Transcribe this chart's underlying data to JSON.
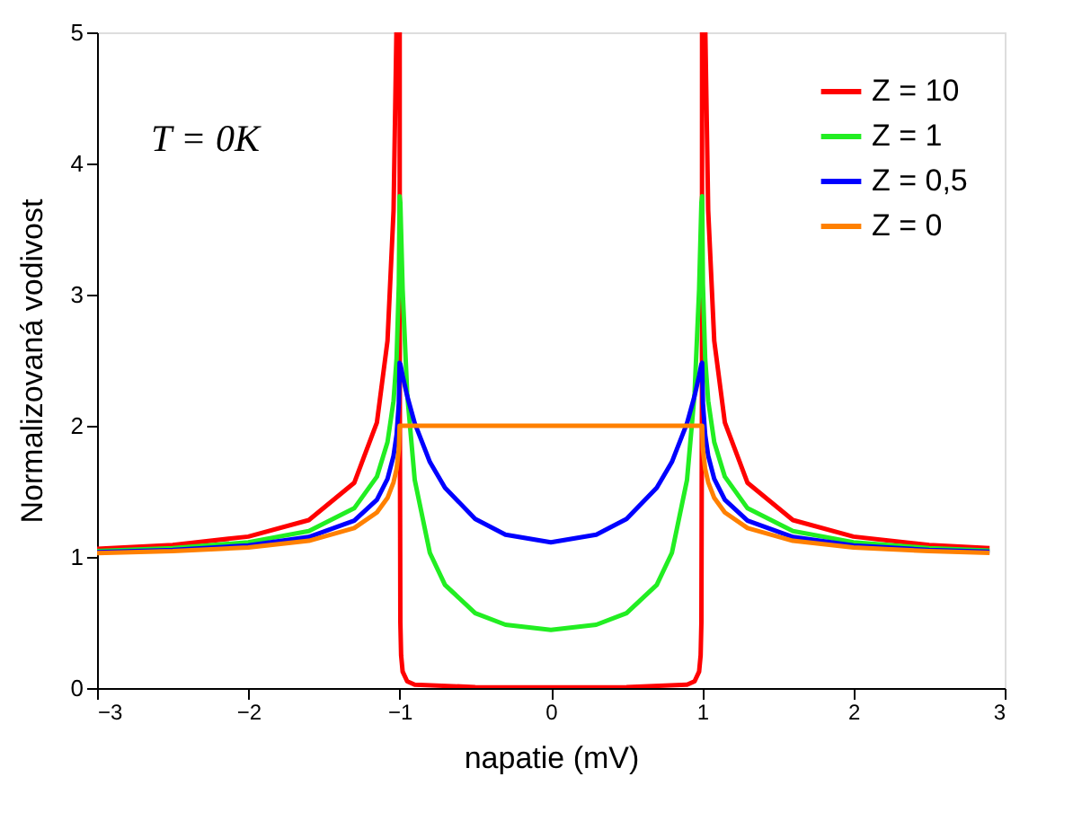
{
  "chart_data": {
    "type": "line",
    "xlabel": "napatie (mV)",
    "ylabel": "Normalizovaná vodivost",
    "annotations": [
      "T = 0K"
    ],
    "xlim": [
      -3,
      3
    ],
    "ylim": [
      0,
      5
    ],
    "xticks": [
      -3,
      -2,
      -1,
      0,
      1,
      2,
      3
    ],
    "yticks": [
      0,
      1,
      2,
      3,
      4,
      5
    ],
    "grid": false,
    "legend": "top right",
    "line_style": "solid",
    "marker": "none",
    "series": [
      {
        "name": "Z = 10",
        "color": "#ff0000",
        "x": [
          -3,
          -2.5,
          -2,
          -1.6,
          -1.3,
          -1.15,
          -1.08,
          -1.04,
          -1.021,
          -1,
          -0.9995,
          -0.999,
          -0.995,
          -0.99,
          -0.98,
          -0.95,
          -0.9,
          -0.5,
          0,
          0.5,
          0.9,
          0.95,
          0.98,
          0.99,
          0.995,
          0.999,
          0.9995,
          1,
          1.021,
          1.04,
          1.08,
          1.15,
          1.3,
          1.6,
          2,
          2.5,
          2.9
        ],
        "values": [
          1.061,
          1.091,
          1.155,
          1.281,
          1.565,
          2.025,
          2.647,
          3.64,
          5,
          5,
          5,
          2.47,
          0.5,
          0.25,
          0.126,
          0.051,
          0.026,
          0.007,
          0.005,
          0.007,
          0.026,
          0.051,
          0.126,
          0.25,
          0.5,
          2.47,
          5,
          5,
          5,
          3.64,
          2.647,
          2.025,
          1.565,
          1.281,
          1.155,
          1.091,
          1.066
        ]
      },
      {
        "name": "Z = 1",
        "color": "#22ee22",
        "x": [
          -3,
          -2.5,
          -2,
          -1.6,
          -1.3,
          -1.15,
          -1.08,
          -1.04,
          -1.02,
          -1.005,
          -1,
          -0.995,
          -0.98,
          -0.95,
          -0.9,
          -0.8,
          -0.7,
          -0.5,
          -0.3,
          0,
          0.3,
          0.5,
          0.7,
          0.8,
          0.9,
          0.95,
          0.98,
          0.995,
          1,
          1.005,
          1.02,
          1.04,
          1.08,
          1.15,
          1.3,
          1.6,
          2,
          2.5,
          2.9
        ],
        "values": [
          1.045,
          1.067,
          1.112,
          1.197,
          1.371,
          1.612,
          1.875,
          2.19,
          2.51,
          3.08,
          3.75,
          3.7,
          3.04,
          2.247,
          1.587,
          1.031,
          0.787,
          0.571,
          0.483,
          0.444,
          0.483,
          0.571,
          0.787,
          1.031,
          1.587,
          2.247,
          3.04,
          3.7,
          3.75,
          3.08,
          2.51,
          2.19,
          1.875,
          1.612,
          1.371,
          1.197,
          1.112,
          1.067,
          1.048
        ]
      },
      {
        "name": "Z = 0,5",
        "color": "#0000ff",
        "x": [
          -3,
          -2.5,
          -2,
          -1.6,
          -1.3,
          -1.15,
          -1.08,
          -1.04,
          -1.02,
          -1.005,
          -1,
          -0.995,
          -0.98,
          -0.95,
          -0.9,
          -0.8,
          -0.7,
          -0.5,
          -0.3,
          0,
          0.3,
          0.5,
          0.7,
          0.8,
          0.9,
          0.95,
          0.98,
          0.995,
          1,
          1.005,
          1.02,
          1.04,
          1.08,
          1.15,
          1.3,
          1.6,
          2,
          2.5,
          2.9
        ],
        "values": [
          1.036,
          1.053,
          1.087,
          1.152,
          1.277,
          1.436,
          1.595,
          1.771,
          1.93,
          2.174,
          2.48,
          2.47,
          2.382,
          2.228,
          2.02,
          1.724,
          1.527,
          1.29,
          1.17,
          1.111,
          1.17,
          1.29,
          1.527,
          1.724,
          2.02,
          2.228,
          2.382,
          2.47,
          2.48,
          2.174,
          1.93,
          1.771,
          1.595,
          1.436,
          1.277,
          1.152,
          1.087,
          1.053,
          1.039
        ]
      },
      {
        "name": "Z = 0",
        "color": "#ff8000",
        "x": [
          -3,
          -2.5,
          -2,
          -1.6,
          -1.3,
          -1.15,
          -1.08,
          -1.04,
          -1.02,
          -1.005,
          -1,
          0,
          1,
          1.005,
          1.02,
          1.04,
          1.08,
          1.15,
          1.3,
          1.6,
          2,
          2.5,
          2.9
        ],
        "values": [
          1.029,
          1.044,
          1.072,
          1.123,
          1.22,
          1.339,
          1.45,
          1.57,
          1.67,
          1.82,
          2,
          2,
          2,
          1.82,
          1.67,
          1.57,
          1.45,
          1.339,
          1.22,
          1.123,
          1.072,
          1.044,
          1.031
        ]
      }
    ]
  }
}
